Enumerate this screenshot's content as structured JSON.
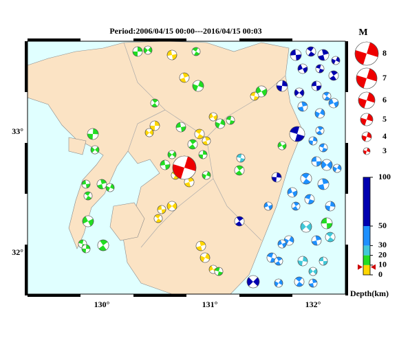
{
  "title": "Period:2006/04/15 00:00---2016/04/15 00:03",
  "longitude_ticks": [
    "130°",
    "131°",
    "132°"
  ],
  "latitude_ticks": [
    "33°",
    "32°"
  ],
  "magnitude_legend": {
    "title": "M",
    "labels": [
      "8",
      "7",
      "6",
      "5",
      "4",
      "3"
    ]
  },
  "depth_scale": {
    "ticks": [
      100,
      50,
      30,
      20,
      10,
      0
    ],
    "label": "Depth(km)"
  }
}
